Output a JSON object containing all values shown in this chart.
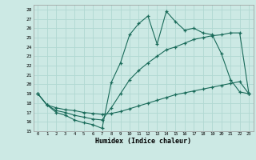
{
  "xlabel": "Humidex (Indice chaleur)",
  "bg_color": "#cce9e4",
  "grid_color": "#b0d8d2",
  "line_color": "#1a6b5a",
  "xlim": [
    -0.5,
    23.5
  ],
  "ylim": [
    15,
    28.5
  ],
  "xticks": [
    0,
    1,
    2,
    3,
    4,
    5,
    6,
    7,
    8,
    9,
    10,
    11,
    12,
    13,
    14,
    15,
    16,
    17,
    18,
    19,
    20,
    21,
    22,
    23
  ],
  "yticks": [
    15,
    16,
    17,
    18,
    19,
    20,
    21,
    22,
    23,
    24,
    25,
    26,
    27,
    28
  ],
  "s1_x": [
    0,
    1,
    2,
    3,
    4,
    5,
    6,
    7,
    8,
    9,
    10,
    11,
    12,
    13,
    14,
    15,
    16,
    17,
    18,
    19,
    20,
    21,
    22,
    23
  ],
  "s1_y": [
    19.0,
    17.8,
    17.0,
    16.7,
    16.2,
    15.9,
    15.7,
    15.3,
    20.2,
    22.3,
    25.3,
    26.5,
    27.3,
    24.3,
    27.8,
    26.7,
    25.8,
    26.0,
    25.5,
    25.3,
    23.3,
    20.5,
    19.2,
    19.0
  ],
  "s2_x": [
    0,
    1,
    2,
    3,
    4,
    5,
    6,
    7,
    8,
    9,
    10,
    11,
    12,
    13,
    14,
    15,
    16,
    17,
    18,
    19,
    20,
    21,
    22,
    23
  ],
  "s2_y": [
    19.0,
    17.8,
    17.2,
    17.0,
    16.7,
    16.5,
    16.3,
    16.2,
    17.5,
    19.0,
    20.5,
    21.5,
    22.3,
    23.0,
    23.7,
    24.0,
    24.4,
    24.8,
    25.0,
    25.2,
    25.3,
    25.5,
    25.5,
    19.0
  ],
  "s3_x": [
    0,
    1,
    2,
    3,
    4,
    5,
    6,
    7,
    8,
    9,
    10,
    11,
    12,
    13,
    14,
    15,
    16,
    17,
    18,
    19,
    20,
    21,
    22,
    23
  ],
  "s3_y": [
    19.0,
    17.8,
    17.5,
    17.3,
    17.2,
    17.0,
    16.9,
    16.8,
    16.9,
    17.1,
    17.4,
    17.7,
    18.0,
    18.3,
    18.6,
    18.9,
    19.1,
    19.3,
    19.5,
    19.7,
    19.9,
    20.1,
    20.3,
    19.0
  ]
}
